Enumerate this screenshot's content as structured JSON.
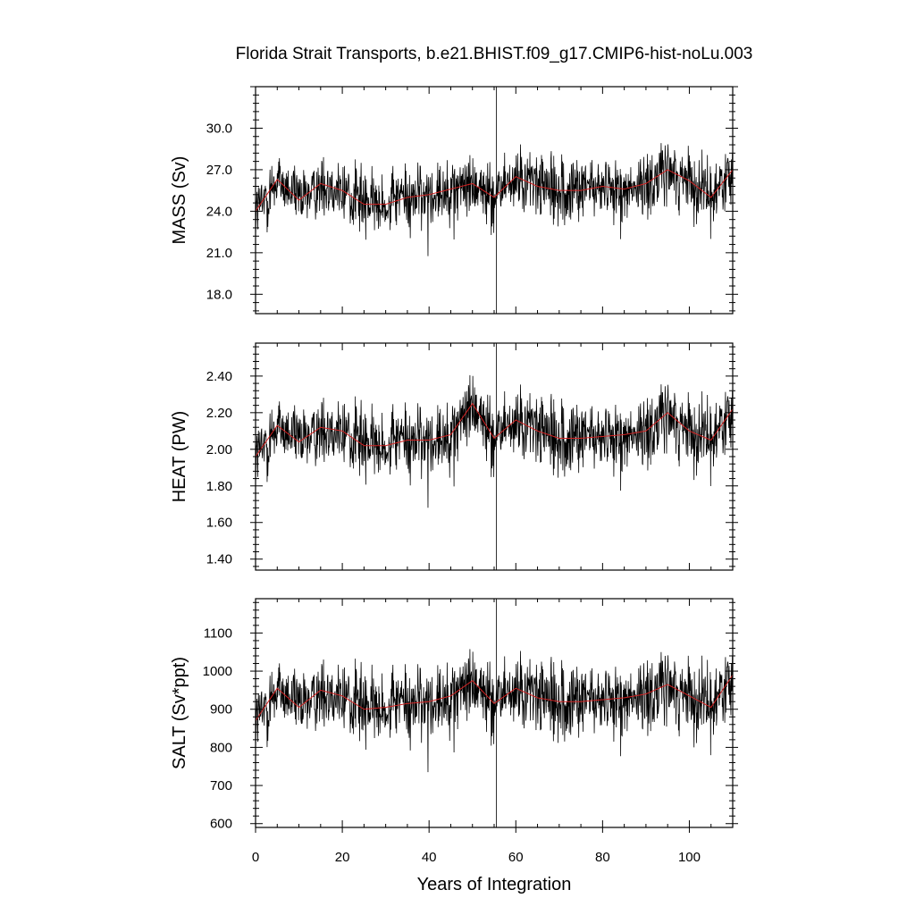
{
  "chart_data": {
    "type": "line",
    "title": "Florida Strait Transports, b.e21.BHIST.f09_g17.CMIP6-hist-noLu.003",
    "xlabel": "Years of Integration",
    "xlim": [
      0,
      110
    ],
    "xticks": [
      0,
      20,
      40,
      60,
      80,
      100
    ],
    "xtick_labels": [
      "0",
      "20",
      "40",
      "60",
      "80",
      "100"
    ],
    "colors": {
      "raw": "#000000",
      "smooth": "#d22222"
    },
    "panels": [
      {
        "key": "mass",
        "ylabel": "MASS (Sv)",
        "ylim": [
          16.6,
          33.0
        ],
        "yticks": [
          18.0,
          21.0,
          24.0,
          27.0,
          30.0
        ],
        "ytick_labels": [
          "18.0",
          "21.0",
          "24.0",
          "27.0",
          "30.0"
        ],
        "series": [
          {
            "x": [
              0,
              5,
              10,
              15,
              20,
              25,
              30,
              35,
              40,
              45,
              50,
              55,
              60,
              65,
              70,
              75,
              80,
              85,
              90,
              95,
              100,
              105,
              110
            ],
            "values": [
              24.0,
              26.3,
              24.8,
              26.0,
              25.5,
              24.5,
              24.5,
              25.0,
              25.2,
              25.6,
              26.0,
              25.0,
              26.5,
              25.8,
              25.5,
              25.5,
              25.8,
              25.6,
              26.0,
              27.0,
              26.2,
              25.0,
              27.0
            ]
          }
        ]
      },
      {
        "key": "heat",
        "ylabel": "HEAT (PW)",
        "ylim": [
          1.34,
          2.58
        ],
        "yticks": [
          1.4,
          1.6,
          1.8,
          2.0,
          2.2,
          2.4
        ],
        "ytick_labels": [
          "1.40",
          "1.60",
          "1.80",
          "2.00",
          "2.20",
          "2.40"
        ],
        "series": [
          {
            "x": [
              0,
              5,
              10,
              15,
              20,
              25,
              30,
              35,
              40,
              45,
              50,
              55,
              60,
              65,
              70,
              75,
              80,
              85,
              90,
              95,
              100,
              105,
              110
            ],
            "values": [
              1.96,
              2.13,
              2.04,
              2.12,
              2.1,
              2.02,
              2.02,
              2.05,
              2.05,
              2.08,
              2.25,
              2.06,
              2.16,
              2.1,
              2.06,
              2.06,
              2.07,
              2.08,
              2.1,
              2.2,
              2.1,
              2.05,
              2.22
            ]
          }
        ]
      },
      {
        "key": "salt",
        "ylabel": "SALT (Sv*ppt)",
        "ylim": [
          590,
          1190
        ],
        "yticks": [
          600,
          700,
          800,
          900,
          1000,
          1100
        ],
        "ytick_labels": [
          "600",
          "700",
          "800",
          "900",
          "1000",
          "1100"
        ],
        "series": [
          {
            "x": [
              0,
              5,
              10,
              15,
              20,
              25,
              30,
              35,
              40,
              45,
              50,
              55,
              60,
              65,
              70,
              75,
              80,
              85,
              90,
              95,
              100,
              105,
              110
            ],
            "values": [
              870,
              955,
              905,
              950,
              935,
              900,
              905,
              915,
              920,
              935,
              975,
              915,
              955,
              930,
              920,
              920,
              925,
              930,
              940,
              965,
              935,
              905,
              990
            ]
          }
        ]
      }
    ]
  }
}
